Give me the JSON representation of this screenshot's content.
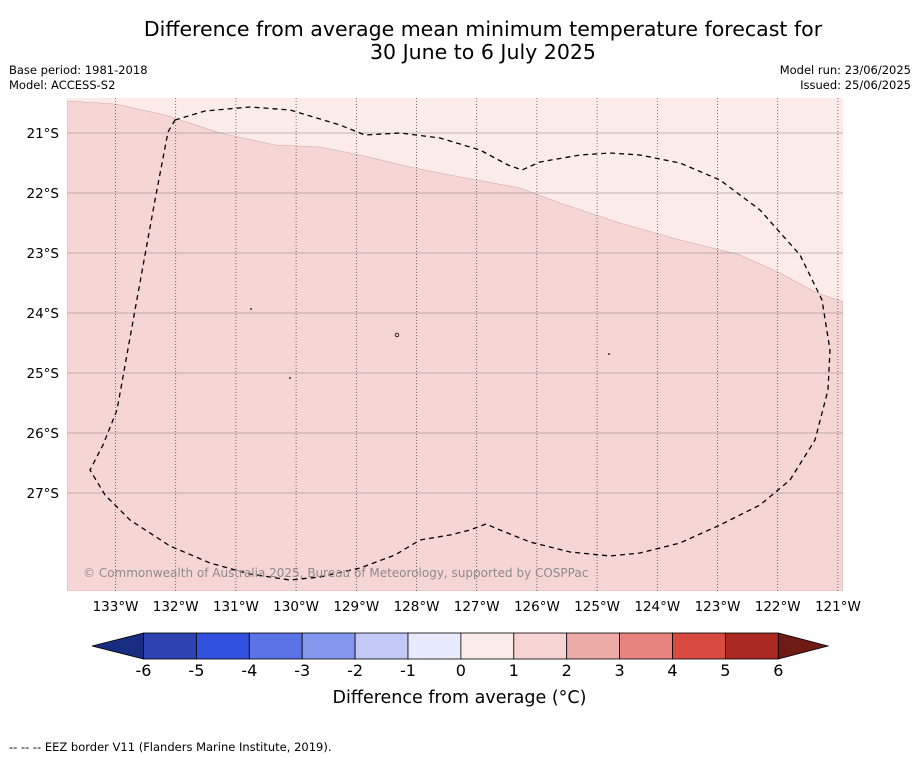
{
  "title_line1": "Difference from average mean minimum temperature forecast for",
  "title_line2": "30 June to 6 July 2025",
  "base_period": "Base period: 1981-2018",
  "model": "Model: ACCESS-S2",
  "model_run": "Model run: 23/06/2025",
  "issued": "Issued: 25/06/2025",
  "copyright": "© Commonwealth of Australia 2025, Bureau of Meteorology, supported by COSPPac",
  "latitude_labels": [
    "21°S",
    "22°S",
    "23°S",
    "24°S",
    "25°S",
    "26°S",
    "27°S"
  ],
  "longitude_labels": [
    "133°W",
    "132°W",
    "131°W",
    "130°W",
    "129°W",
    "128°W",
    "127°W",
    "126°W",
    "125°W",
    "124°W",
    "123°W",
    "122°W",
    "121°W"
  ],
  "colorbar": {
    "label": "Difference from average (°C)",
    "ticks": [
      "-6",
      "-5",
      "-4",
      "-3",
      "-2",
      "-1",
      "0",
      "1",
      "2",
      "3",
      "4",
      "5",
      "6"
    ],
    "colors": [
      "#182c80",
      "#2b42b0",
      "#3150dd",
      "#5a72e6",
      "#8497ee",
      "#c2c9f6",
      "#e8ebfb",
      "#fbecea",
      "#f5d4d3",
      "#edaba7",
      "#e8847d",
      "#d8493f",
      "#aa2a22",
      "#6e1b15"
    ]
  },
  "map_regions": [
    {
      "anomaly_class": "0 to 1",
      "color": "#fbecea"
    },
    {
      "anomaly_class": "1 to 2",
      "color": "#f5d6d4"
    }
  ],
  "footnote": "-- -- -- EEZ border V11 (Flanders Marine Institute, 2019)."
}
